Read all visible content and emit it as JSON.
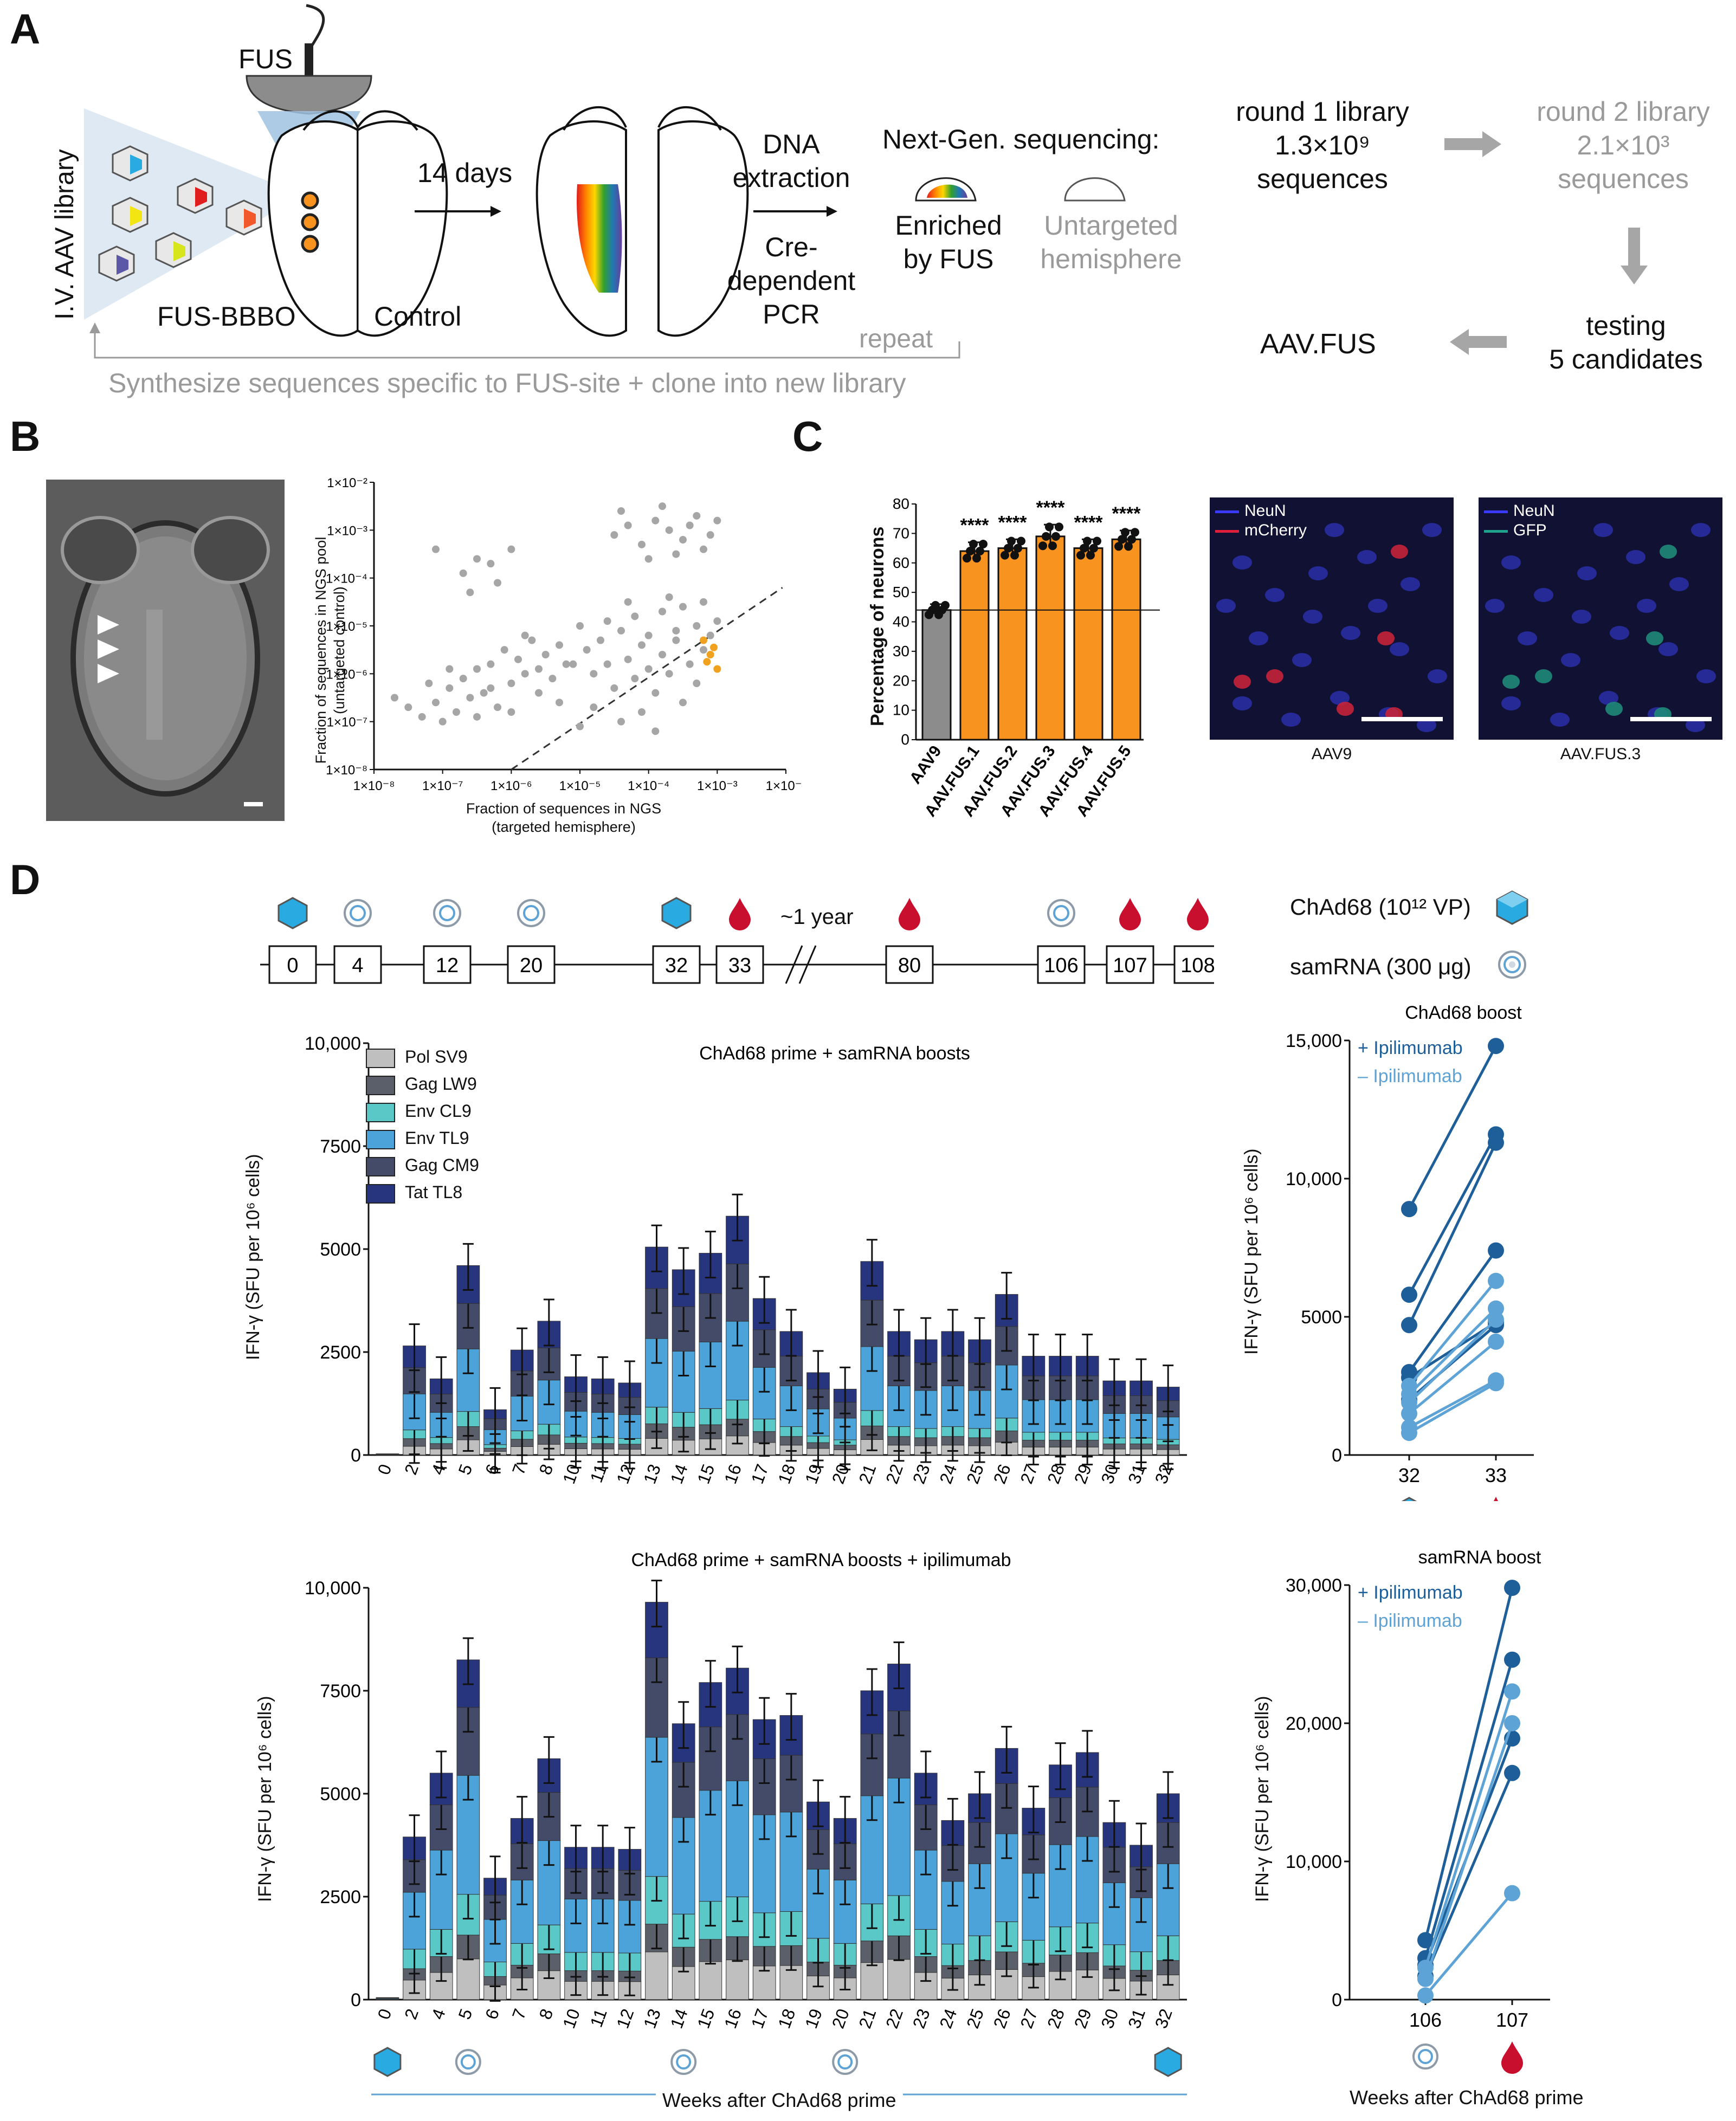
{
  "panels": {
    "A": "A",
    "B": "B",
    "C": "C",
    "D": "D"
  },
  "panelA": {
    "fus": "FUS",
    "library": "I.V. AAV library",
    "fus_bbbo": "FUS-BBBO",
    "control": "Control",
    "days": "14 days",
    "dna_line1": "DNA",
    "dna_line2": "extraction",
    "cre_line1": "Cre-",
    "cre_line2": "dependent",
    "cre_line3": "PCR",
    "ngs_title": "Next-Gen. sequencing:",
    "enriched_line1": "Enriched",
    "enriched_line2": "by FUS",
    "untargeted_line1": "Untargeted",
    "untargeted_line2": "hemisphere",
    "repeat": "repeat",
    "synth": "Synthesize sequences specific to FUS-site + clone into new library",
    "round1_line1": "round 1 library",
    "round1_line2": "1.3×10⁹",
    "round1_line3": "sequences",
    "round2_line1": "round 2 library",
    "round2_line2": "2.1×10³",
    "round2_line3": "sequences",
    "testing_line1": "testing",
    "testing_line2": "5 candidates",
    "aavfus": "AAV.FUS"
  },
  "panelB": {
    "ylabel_line1": "Fraction of sequences in NGS pool",
    "ylabel_line2": "(untargeted control)",
    "xlabel_line1": "Fraction of sequences in NGS",
    "xlabel_line2": "(targeted hemisphere)",
    "ticks": [
      "1×10⁻⁸",
      "1×10⁻⁷",
      "1×10⁻⁶",
      "1×10⁻⁵",
      "1×10⁻⁴",
      "1×10⁻³",
      "1×10⁻²"
    ]
  },
  "panelC": {
    "ylabel": "Percentage of neurons",
    "significance": "****",
    "micro1_neun": "NeuN",
    "micro1_marker": "mCherry",
    "micro1_label": "AAV9",
    "micro2_neun": "NeuN",
    "micro2_marker": "GFP",
    "micro2_label": "AAV.FUS.3",
    "colors": {
      "aav9": "#8c8c8c",
      "fus": "#f7931e"
    }
  },
  "panelD": {
    "timeline_weeks": [
      "0",
      "4",
      "12",
      "20",
      "32",
      "33",
      "80",
      "106",
      "107",
      "108"
    ],
    "year_label": "~1 year",
    "legend_chad": "ChAd68 (10¹² VP)",
    "legend_samrna": "samRNA (300 μg)",
    "stack_legend": [
      "Pol SV9",
      "Gag LW9",
      "Env CL9",
      "Env TL9",
      "Gag CM9",
      "Tat TL8"
    ],
    "stack_colors": [
      "#bfbfbf",
      "#5a5f6a",
      "#5bc8c8",
      "#4ba3d9",
      "#434b68",
      "#27357f"
    ],
    "ylabel": "IFN-γ (SFU per 10⁶ cells)",
    "xlabel": "Weeks after ChAd68 prime",
    "boost_plus": "+ Ipilimumab",
    "boost_minus": "– Ipilimumab",
    "boost_colors": {
      "plus": "#1f5f99",
      "minus": "#5ea3d6"
    }
  },
  "chart_data": [
    {
      "type": "scatter",
      "title": "",
      "xlabel": "Fraction of sequences in NGS (targeted hemisphere)",
      "ylabel": "Fraction of sequences in NGS pool (untargeted control)",
      "xscale": "log",
      "yscale": "log",
      "xlim_log10": [
        -8,
        -2
      ],
      "ylim_log10": [
        -8,
        -2
      ],
      "reference_line": "identity (dashed)",
      "series": [
        {
          "name": "library sequences",
          "color": "#a6a6a6",
          "points_log10": [
            [
              -7.7,
              -6.5
            ],
            [
              -7.5,
              -6.7
            ],
            [
              -7.3,
              -6.9
            ],
            [
              -7.1,
              -6.6
            ],
            [
              -7.0,
              -7.0
            ],
            [
              -6.9,
              -6.3
            ],
            [
              -6.8,
              -6.8
            ],
            [
              -6.7,
              -6.1
            ],
            [
              -6.6,
              -6.5
            ],
            [
              -6.5,
              -5.9
            ],
            [
              -6.4,
              -6.4
            ],
            [
              -6.3,
              -5.8
            ],
            [
              -6.2,
              -6.7
            ],
            [
              -6.1,
              -5.5
            ],
            [
              -6.0,
              -6.2
            ],
            [
              -5.9,
              -5.7
            ],
            [
              -5.8,
              -6.0
            ],
            [
              -5.7,
              -5.3
            ],
            [
              -5.6,
              -5.9
            ],
            [
              -5.5,
              -5.6
            ],
            [
              -5.4,
              -6.1
            ],
            [
              -5.3,
              -5.4
            ],
            [
              -5.2,
              -5.8
            ],
            [
              -6.5,
              -6.9
            ],
            [
              -6.9,
              -5.9
            ],
            [
              -7.2,
              -6.2
            ],
            [
              -6.0,
              -6.8
            ],
            [
              -5.8,
              -5.2
            ],
            [
              -5.6,
              -6.4
            ],
            [
              -6.3,
              -6.3
            ],
            [
              -6.7,
              -3.9
            ],
            [
              -6.5,
              -3.6
            ],
            [
              -6.3,
              -3.7
            ],
            [
              -6.2,
              -4.1
            ],
            [
              -6.0,
              -3.4
            ],
            [
              -6.6,
              -4.3
            ],
            [
              -7.1,
              -3.4
            ],
            [
              -5.0,
              -5.0
            ],
            [
              -4.9,
              -5.5
            ],
            [
              -4.8,
              -6.0
            ],
            [
              -4.7,
              -5.3
            ],
            [
              -4.6,
              -5.8
            ],
            [
              -4.5,
              -6.3
            ],
            [
              -4.4,
              -5.1
            ],
            [
              -4.3,
              -5.7
            ],
            [
              -4.2,
              -6.1
            ],
            [
              -4.1,
              -5.4
            ],
            [
              -4.0,
              -5.9
            ],
            [
              -3.9,
              -6.4
            ],
            [
              -3.8,
              -5.6
            ],
            [
              -3.7,
              -6.0
            ],
            [
              -3.6,
              -5.3
            ],
            [
              -3.5,
              -6.6
            ],
            [
              -3.4,
              -5.8
            ],
            [
              -3.3,
              -6.2
            ],
            [
              -3.2,
              -5.5
            ],
            [
              -4.8,
              -6.7
            ],
            [
              -4.4,
              -7.0
            ],
            [
              -4.1,
              -6.8
            ],
            [
              -3.9,
              -7.2
            ],
            [
              -4.6,
              -4.9
            ],
            [
              -4.2,
              -4.8
            ],
            [
              -3.8,
              -4.7
            ],
            [
              -3.5,
              -4.6
            ],
            [
              -3.2,
              -4.5
            ],
            [
              -4.5,
              -3.1
            ],
            [
              -4.3,
              -2.9
            ],
            [
              -4.1,
              -3.3
            ],
            [
              -3.9,
              -2.8
            ],
            [
              -3.7,
              -3.0
            ],
            [
              -3.5,
              -3.2
            ],
            [
              -3.3,
              -2.7
            ],
            [
              -3.1,
              -3.1
            ],
            [
              -4.4,
              -2.6
            ],
            [
              -3.6,
              -3.5
            ],
            [
              -3.4,
              -2.9
            ],
            [
              -3.2,
              -3.4
            ],
            [
              -3.0,
              -2.8
            ],
            [
              -4.0,
              -3.6
            ],
            [
              -3.8,
              -2.5
            ],
            [
              -3.3,
              -5.0
            ],
            [
              -3.1,
              -5.2
            ],
            [
              -3.0,
              -4.9
            ],
            [
              -3.6,
              -5.1
            ],
            [
              -4.0,
              -5.2
            ],
            [
              -3.7,
              -4.4
            ],
            [
              -4.3,
              -4.5
            ],
            [
              -5.1,
              -5.8
            ],
            [
              -5.3,
              -6.6
            ],
            [
              -5.0,
              -7.1
            ]
          ]
        },
        {
          "name": "selected candidates",
          "color": "#f0a21e",
          "points_log10": [
            [
              -3.2,
              -5.3
            ],
            [
              -3.1,
              -5.6
            ],
            [
              -3.0,
              -5.9
            ],
            [
              -3.15,
              -5.75
            ],
            [
              -3.05,
              -5.45
            ]
          ]
        }
      ]
    },
    {
      "type": "bar",
      "title": "",
      "xlabel": "",
      "ylabel": "Percentage of neurons",
      "ylim": [
        0,
        80
      ],
      "categories": [
        "AAV9",
        "AAV.FUS.1",
        "AAV.FUS.2",
        "AAV.FUS.3",
        "AAV.FUS.4",
        "AAV.FUS.5"
      ],
      "values": [
        44,
        64,
        65,
        69,
        65,
        68
      ],
      "errors": [
        2,
        3,
        3,
        4,
        3,
        3
      ],
      "reference_line": 44,
      "significance": [
        "",
        "****",
        "****",
        "****",
        "****",
        "****"
      ]
    },
    {
      "type": "bar",
      "stacked": true,
      "title": "ChAd68 prime + samRNA boosts",
      "xlabel": "",
      "ylabel": "IFN-γ (SFU per 10⁶ cells)",
      "ylim": [
        0,
        10000
      ],
      "yticks": [
        "0",
        "2500",
        "5000",
        "7500",
        "10,000"
      ],
      "categories": [
        "0",
        "2",
        "4",
        "5",
        "6",
        "7",
        "8",
        "10",
        "11",
        "12",
        "13",
        "14",
        "15",
        "16",
        "17",
        "18",
        "19",
        "20",
        "21",
        "22",
        "23",
        "24",
        "25",
        "26",
        "27",
        "28",
        "29",
        "30",
        "31",
        "32"
      ],
      "totals": [
        30,
        2650,
        1850,
        4600,
        1100,
        2550,
        3250,
        1900,
        1850,
        1750,
        5050,
        4500,
        4900,
        5800,
        3800,
        3000,
        2000,
        1600,
        4700,
        3000,
        2800,
        3000,
        2800,
        3900,
        2400,
        2400,
        2400,
        1800,
        1800,
        1650
      ],
      "fractions": [
        0.08,
        0.07,
        0.08,
        0.33,
        0.24,
        0.2
      ],
      "series": [
        "Pol SV9",
        "Gag LW9",
        "Env CL9",
        "Env TL9",
        "Gag CM9",
        "Tat TL8"
      ]
    },
    {
      "type": "bar",
      "stacked": true,
      "title": "ChAd68 prime + samRNA boosts + ipilimumab",
      "xlabel": "Weeks after ChAd68 prime",
      "ylabel": "IFN-γ (SFU per 10⁶ cells)",
      "ylim": [
        0,
        10000
      ],
      "yticks": [
        "0",
        "2500",
        "5000",
        "7500",
        "10,000"
      ],
      "categories": [
        "0",
        "2",
        "4",
        "5",
        "6",
        "7",
        "8",
        "10",
        "11",
        "12",
        "13",
        "14",
        "15",
        "16",
        "17",
        "18",
        "19",
        "20",
        "21",
        "22",
        "23",
        "24",
        "25",
        "26",
        "27",
        "28",
        "29",
        "30",
        "31",
        "32"
      ],
      "totals": [
        50,
        3950,
        5500,
        8250,
        2950,
        4400,
        5850,
        3700,
        3700,
        3650,
        9650,
        6700,
        7700,
        8050,
        6800,
        6900,
        4800,
        4400,
        7500,
        8150,
        5500,
        4350,
        5000,
        6100,
        4650,
        5700,
        6000,
        4300,
        3750,
        5000
      ],
      "fractions": [
        0.12,
        0.07,
        0.12,
        0.35,
        0.2,
        0.14
      ],
      "series": [
        "Pol SV9",
        "Gag LW9",
        "Env CL9",
        "Env TL9",
        "Gag CM9",
        "Tat TL8"
      ]
    },
    {
      "type": "line",
      "title": "ChAd68 boost",
      "xlabel": "",
      "ylabel": "IFN-γ (SFU per 10⁶ cells)",
      "ylim": [
        0,
        15000
      ],
      "yticks": [
        "0",
        "5000",
        "10,000",
        "15,000"
      ],
      "x": [
        "32",
        "33"
      ],
      "series": [
        {
          "name": "+ Ipilimumab",
          "pairs": [
            [
              8900,
              14800
            ],
            [
              5800,
              11600
            ],
            [
              4700,
              11300
            ],
            [
              3000,
              7400
            ],
            [
              2800,
              4800
            ],
            [
              2000,
              4700
            ]
          ]
        },
        {
          "name": "– Ipilimumab",
          "pairs": [
            [
              2500,
              6300
            ],
            [
              2200,
              5300
            ],
            [
              1900,
              4900
            ],
            [
              1500,
              4100
            ],
            [
              1000,
              2700
            ],
            [
              800,
              2600
            ]
          ]
        }
      ]
    },
    {
      "type": "line",
      "title": "samRNA boost",
      "xlabel": "Weeks after ChAd68 prime",
      "ylabel": "IFN-γ (SFU per 10⁶ cells)",
      "ylim": [
        0,
        30000
      ],
      "yticks": [
        "0",
        "10,000",
        "20,000",
        "30,000"
      ],
      "x": [
        "106",
        "107"
      ],
      "series": [
        {
          "name": "+ Ipilimumab",
          "pairs": [
            [
              4300,
              29800
            ],
            [
              3000,
              24600
            ],
            [
              2500,
              18900
            ],
            [
              1700,
              16400
            ]
          ]
        },
        {
          "name": "– Ipilimumab",
          "pairs": [
            [
              2300,
              22300
            ],
            [
              1500,
              20000
            ],
            [
              300,
              7700
            ]
          ]
        }
      ]
    }
  ]
}
